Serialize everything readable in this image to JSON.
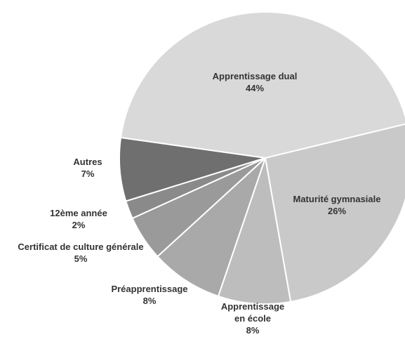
{
  "chart_data": {
    "type": "pie",
    "categories": [
      "Apprentissage dual",
      "Maturité gymnasiale",
      "Apprentissage en école",
      "Préapprentissage",
      "Certificat de culture générale",
      "12ème année",
      "Autres"
    ],
    "values": [
      44,
      26,
      8,
      8,
      5,
      2,
      7
    ],
    "value_labels": [
      "44%",
      "26%",
      "8%",
      "8%",
      "5%",
      "2%",
      "7%"
    ],
    "colors": [
      "#d9d9d9",
      "#c9c9c9",
      "#bdbdbd",
      "#a9a9a9",
      "#9a9a9a",
      "#8a8a8a",
      "#6f6f6f"
    ]
  }
}
